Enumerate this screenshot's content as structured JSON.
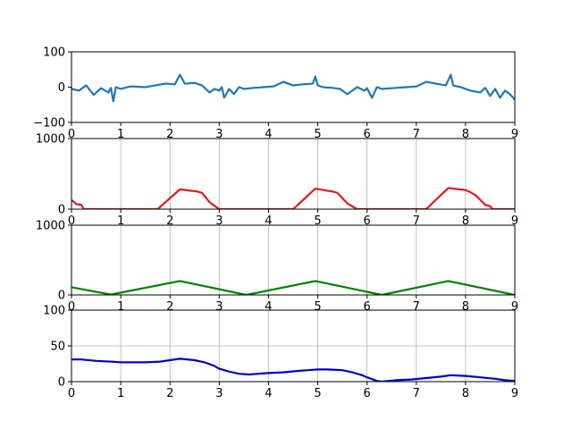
{
  "chart_data": [
    {
      "type": "line",
      "x_ticks": [
        "0",
        "1",
        "2",
        "3",
        "4",
        "5",
        "6",
        "7",
        "8",
        "9"
      ],
      "y_ticks": [
        "100",
        "0",
        "−100"
      ],
      "xlim": [
        0,
        9
      ],
      "ylim": [
        -100,
        100
      ],
      "grid": false,
      "series": [
        {
          "color": "#1f77b4",
          "x": [
            0.0,
            0.15,
            0.3,
            0.45,
            0.6,
            0.75,
            0.8,
            0.85,
            0.9,
            1.0,
            1.2,
            1.5,
            1.7,
            1.9,
            2.1,
            2.2,
            2.3,
            2.5,
            2.65,
            2.8,
            2.9,
            3.0,
            3.05,
            3.1,
            3.2,
            3.3,
            3.4,
            3.5,
            3.7,
            3.9,
            4.1,
            4.3,
            4.5,
            4.7,
            4.9,
            4.95,
            5.0,
            5.1,
            5.3,
            5.45,
            5.6,
            5.8,
            5.95,
            6.0,
            6.1,
            6.2,
            6.3,
            6.5,
            6.8,
            7.0,
            7.2,
            7.4,
            7.6,
            7.7,
            7.75,
            7.9,
            8.1,
            8.3,
            8.4,
            8.5,
            8.6,
            8.7,
            8.8,
            8.9,
            9.0
          ],
          "y": [
            -5,
            -10,
            5,
            -22,
            -3,
            -15,
            -2,
            -40,
            0,
            -5,
            2,
            0,
            5,
            10,
            8,
            35,
            10,
            12,
            5,
            -15,
            -5,
            -10,
            0,
            -30,
            -5,
            -20,
            0,
            -5,
            -2,
            0,
            2,
            15,
            5,
            8,
            10,
            30,
            5,
            0,
            -2,
            -5,
            -20,
            0,
            -10,
            -3,
            -30,
            0,
            -5,
            -3,
            0,
            2,
            15,
            10,
            5,
            35,
            5,
            0,
            -10,
            -15,
            -2,
            -25,
            -5,
            -30,
            -10,
            -20,
            -35
          ]
        }
      ]
    },
    {
      "type": "line",
      "x_ticks": [
        "0",
        "1",
        "2",
        "3",
        "4",
        "5",
        "6",
        "7",
        "8",
        "9"
      ],
      "y_ticks": [
        "1000",
        "0"
      ],
      "xlim": [
        0,
        9
      ],
      "ylim": [
        0,
        1000
      ],
      "grid": true,
      "series": [
        {
          "color": "#e31a1c",
          "x": [
            0.0,
            0.1,
            0.2,
            0.25,
            1.75,
            2.2,
            2.55,
            2.65,
            2.8,
            2.9,
            3.0,
            4.5,
            4.95,
            5.2,
            5.3,
            5.4,
            5.6,
            5.8,
            7.2,
            7.65,
            8.0,
            8.1,
            8.2,
            8.4,
            8.5,
            8.55,
            9.0
          ],
          "y": [
            130,
            70,
            60,
            0,
            0,
            280,
            250,
            230,
            100,
            50,
            0,
            0,
            290,
            260,
            250,
            230,
            80,
            0,
            0,
            300,
            270,
            240,
            200,
            60,
            40,
            0,
            0
          ]
        }
      ]
    },
    {
      "type": "line",
      "x_ticks": [
        "0",
        "1",
        "2",
        "3",
        "4",
        "5",
        "6",
        "7",
        "8",
        "9"
      ],
      "y_ticks": [
        "1000",
        "0"
      ],
      "xlim": [
        0,
        9
      ],
      "ylim": [
        0,
        1000
      ],
      "grid": true,
      "series": [
        {
          "color": "#008000",
          "x": [
            0.0,
            0.8,
            2.2,
            3.55,
            4.95,
            6.3,
            7.65,
            9.0
          ],
          "y": [
            110,
            5,
            200,
            0,
            200,
            0,
            200,
            0
          ]
        }
      ]
    },
    {
      "type": "line",
      "x_ticks": [
        "0",
        "1",
        "2",
        "3",
        "4",
        "5",
        "6",
        "7",
        "8",
        "9"
      ],
      "y_ticks": [
        "100",
        "50",
        "0"
      ],
      "xlim": [
        0,
        9
      ],
      "ylim": [
        0,
        100
      ],
      "grid": true,
      "series": [
        {
          "color": "#0000cc",
          "x": [
            0.0,
            0.2,
            0.5,
            0.8,
            1.0,
            1.5,
            1.8,
            2.0,
            2.2,
            2.5,
            2.7,
            2.9,
            3.0,
            3.2,
            3.4,
            3.6,
            3.8,
            4.0,
            4.3,
            4.6,
            4.8,
            5.0,
            5.2,
            5.5,
            5.7,
            5.9,
            6.0,
            6.2,
            6.3,
            6.6,
            6.9,
            7.2,
            7.5,
            7.7,
            8.0,
            8.3,
            8.6,
            8.8,
            9.0
          ],
          "y": [
            31,
            31,
            29,
            28,
            27,
            27,
            28,
            30,
            32,
            30,
            27,
            22,
            18,
            14,
            11,
            10,
            11,
            12,
            13,
            15,
            16,
            17,
            17,
            16,
            13,
            9,
            6,
            1,
            0,
            2,
            3,
            5,
            7,
            9,
            8,
            6,
            4,
            2,
            1
          ]
        }
      ]
    }
  ]
}
